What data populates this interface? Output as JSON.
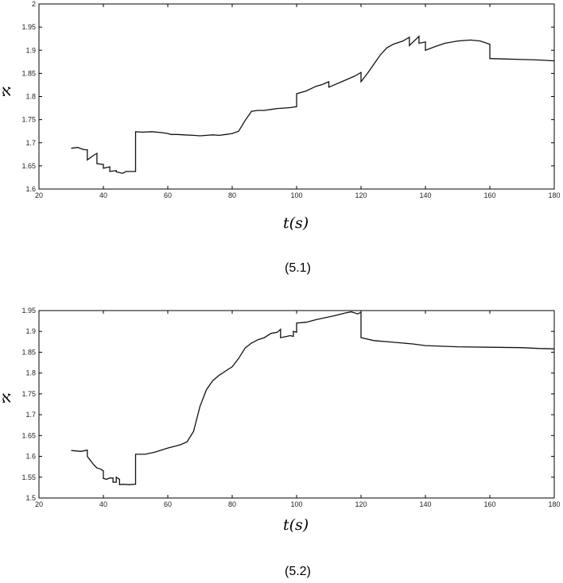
{
  "chart_data": [
    {
      "type": "line",
      "caption": "(5.1)",
      "xlabel": "t(s)",
      "ylabel": "א",
      "xlim": [
        20,
        180
      ],
      "ylim": [
        1.6,
        2.0
      ],
      "xticks": [
        "20",
        "40",
        "60",
        "80",
        "100",
        "120",
        "140",
        "160",
        "180"
      ],
      "yticks": [
        "1.6",
        "1.65",
        "1.7",
        "1.75",
        "1.8",
        "1.85",
        "1.9",
        "1.95",
        "2"
      ],
      "grid": false,
      "series": [
        {
          "x": [
            30,
            32,
            34,
            35,
            35,
            37,
            38,
            38,
            40,
            40,
            42,
            42,
            44,
            44,
            46,
            47,
            50,
            50,
            52,
            55,
            58,
            60,
            61,
            63,
            65,
            68,
            70,
            72,
            74,
            76,
            78,
            80,
            82,
            84,
            86,
            88,
            90,
            92,
            94,
            96,
            98,
            100,
            100,
            103,
            106,
            108,
            110,
            110,
            114,
            118,
            120,
            120,
            122,
            124,
            126,
            128,
            130,
            133,
            135,
            135,
            138,
            138,
            140,
            140,
            143,
            146,
            150,
            154,
            157,
            160,
            160,
            165,
            170,
            175,
            180
          ],
          "y": [
            1.688,
            1.69,
            1.685,
            1.685,
            1.663,
            1.673,
            1.677,
            1.655,
            1.653,
            1.645,
            1.648,
            1.638,
            1.64,
            1.637,
            1.634,
            1.638,
            1.638,
            1.724,
            1.723,
            1.724,
            1.722,
            1.72,
            1.718,
            1.718,
            1.717,
            1.716,
            1.715,
            1.716,
            1.717,
            1.716,
            1.718,
            1.72,
            1.725,
            1.748,
            1.768,
            1.77,
            1.77,
            1.772,
            1.774,
            1.775,
            1.776,
            1.778,
            1.806,
            1.812,
            1.822,
            1.826,
            1.832,
            1.82,
            1.832,
            1.844,
            1.852,
            1.832,
            1.85,
            1.87,
            1.89,
            1.905,
            1.913,
            1.92,
            1.928,
            1.91,
            1.93,
            1.915,
            1.918,
            1.9,
            1.908,
            1.915,
            1.92,
            1.922,
            1.92,
            1.913,
            1.882,
            1.881,
            1.88,
            1.879,
            1.877
          ]
        }
      ]
    },
    {
      "type": "line",
      "caption": "(5.2)",
      "xlabel": "t(s)",
      "ylabel": "א",
      "xlim": [
        20,
        180
      ],
      "ylim": [
        1.5,
        1.95
      ],
      "xticks": [
        "20",
        "40",
        "60",
        "80",
        "100",
        "120",
        "140",
        "160",
        "180"
      ],
      "yticks": [
        "1.5",
        "1.55",
        "1.6",
        "1.65",
        "1.7",
        "1.75",
        "1.8",
        "1.85",
        "1.9",
        "1.95"
      ],
      "grid": false,
      "series": [
        {
          "x": [
            30,
            33,
            35,
            35,
            36,
            37,
            38,
            39,
            40,
            40,
            41,
            42,
            43,
            43,
            44,
            44,
            45,
            45,
            46,
            48,
            50,
            50,
            53,
            56,
            60,
            64,
            66,
            68,
            70,
            72,
            74,
            76,
            78,
            80,
            82,
            84,
            86,
            88,
            90,
            92,
            94,
            95,
            95,
            97,
            98,
            99,
            99,
            100,
            100,
            103,
            106,
            109,
            112,
            115,
            117,
            119,
            120,
            120,
            124,
            130,
            136,
            140,
            150,
            160,
            170,
            175,
            180
          ],
          "y": [
            1.614,
            1.612,
            1.615,
            1.6,
            1.59,
            1.58,
            1.572,
            1.57,
            1.565,
            1.547,
            1.545,
            1.548,
            1.548,
            1.538,
            1.538,
            1.55,
            1.545,
            1.532,
            1.533,
            1.532,
            1.533,
            1.605,
            1.605,
            1.61,
            1.62,
            1.628,
            1.635,
            1.66,
            1.72,
            1.76,
            1.782,
            1.795,
            1.805,
            1.815,
            1.835,
            1.86,
            1.872,
            1.88,
            1.885,
            1.895,
            1.898,
            1.905,
            1.885,
            1.888,
            1.89,
            1.888,
            1.9,
            1.898,
            1.92,
            1.922,
            1.928,
            1.933,
            1.938,
            1.944,
            1.947,
            1.942,
            1.946,
            1.885,
            1.878,
            1.874,
            1.87,
            1.866,
            1.863,
            1.862,
            1.861,
            1.859,
            1.858
          ]
        }
      ]
    }
  ]
}
